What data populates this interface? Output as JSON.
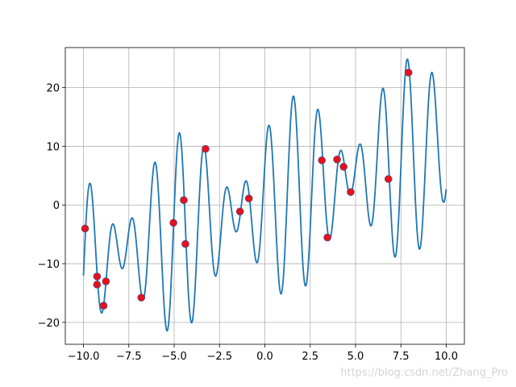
{
  "chart_data": {
    "type": "line",
    "xlim": [
      -11,
      11
    ],
    "ylim": [
      -23.73,
      26.82
    ],
    "xticks": [
      {
        "value": -10,
        "label": "−10.0"
      },
      {
        "value": -7.5,
        "label": "−7.5"
      },
      {
        "value": -5,
        "label": "−5.0"
      },
      {
        "value": -2.5,
        "label": "−2.5"
      },
      {
        "value": 0,
        "label": "0.0"
      },
      2.5,
      {
        "value": 5,
        "label": "5.0"
      },
      7.5,
      {
        "value": 10,
        "label": "10.0"
      }
    ],
    "yticks": [
      {
        "value": -20,
        "label": "−20"
      },
      {
        "value": -10,
        "label": "−10"
      },
      0,
      10,
      20
    ],
    "grid": true,
    "watermark": "https://blog.csdn.net/Zhang_Pro",
    "series": [
      {
        "type": "line",
        "color": "#1f77b4",
        "x": [
          -10,
          -9.9,
          -9.8,
          -9.7,
          -9.6,
          -9.5,
          -9.4,
          -9.3,
          -9.2,
          -9.1,
          -9,
          -8.9,
          -8.8,
          -8.7,
          -8.6,
          -8.5,
          -8.4,
          -8.3,
          -8.2,
          -8.1,
          -8,
          -7.9,
          -7.8,
          -7.7,
          -7.6,
          -7.5,
          -7.4,
          -7.3,
          -7.2,
          -7.1,
          -7,
          -6.9,
          -6.8,
          -6.7,
          -6.6,
          -6.5,
          -6.4,
          -6.3,
          -6.2,
          -6.1,
          -6,
          -5.9,
          -5.8,
          -5.7,
          -5.6,
          -5.5,
          -5.4,
          -5.3,
          -5.2,
          -5.1,
          -5,
          -4.9,
          -4.8,
          -4.7,
          -4.6,
          -4.5,
          -4.4,
          -4.3,
          -4.2,
          -4.1,
          -4,
          -3.9,
          -3.8,
          -3.7,
          -3.6,
          -3.5,
          -3.4,
          -3.3,
          -3.2,
          -3.1,
          -3,
          -2.9,
          -2.8,
          -2.7,
          -2.6,
          -2.5,
          -2.4,
          -2.3,
          -2.2,
          -2.1,
          -2,
          -1.9,
          -1.8,
          -1.7,
          -1.6,
          -1.5,
          -1.4,
          -1.3,
          -1.2,
          -1.1,
          -1,
          -0.9,
          -0.8,
          -0.7,
          -0.6,
          -0.5,
          -0.4,
          -0.3,
          -0.2,
          -0.1,
          0,
          0.1,
          0.2,
          0.3,
          0.4,
          0.5,
          0.6,
          0.7,
          0.8,
          0.9,
          1,
          1.1,
          1.2,
          1.3,
          1.4,
          1.5,
          1.6,
          1.7,
          1.8,
          1.9,
          2,
          2.1,
          2.2,
          2.3,
          2.4,
          2.5,
          2.6,
          2.7,
          2.8,
          2.9,
          3,
          3.1,
          3.2,
          3.3,
          3.4,
          3.5,
          3.6,
          3.7,
          3.8,
          3.9,
          4,
          4.1,
          4.2,
          4.3,
          4.4,
          4.5,
          4.6,
          4.7,
          4.8,
          4.9,
          5,
          5.1,
          5.2,
          5.3,
          5.4,
          5.5,
          5.6,
          5.7,
          5.8,
          5.9,
          6,
          6.1,
          6.2,
          6.3,
          6.4,
          6.5,
          6.6,
          6.7,
          6.8,
          6.9,
          7,
          7.1,
          7.2,
          7.3,
          7.4,
          7.5,
          7.6,
          7.7,
          7.8,
          7.9,
          8,
          8.1,
          8.2,
          8.3,
          8.4,
          8.5,
          8.6,
          8.7,
          8.8,
          8.9,
          9,
          9.1,
          9.2,
          9.3,
          9.4,
          9.5,
          9.6,
          9.7,
          9.8,
          9.9,
          10
        ],
        "values": [
          -12.04,
          -5.26,
          0.23,
          3.28,
          3.43,
          0.86,
          -3.67,
          -9.0,
          -13.85,
          -17.21,
          -18.41,
          -17.4,
          -14.58,
          -10.84,
          -7.2,
          -4.48,
          -3.26,
          -3.65,
          -5.31,
          -7.57,
          -9.61,
          -10.76,
          -10.6,
          -9.16,
          -6.87,
          -4.44,
          -2.68,
          -2.21,
          -3.33,
          -5.95,
          -9.46,
          -12.94,
          -15.42,
          -16.09,
          -14.51,
          -10.81,
          -5.66,
          -0.16,
          4.46,
          7.03,
          6.85,
          3.77,
          -1.65,
          -8.31,
          -14.74,
          -19.49,
          -21.43,
          -20.02,
          -15.42,
          -8.55,
          -0.82,
          6.13,
          10.83,
          12.27,
          10.17,
          5.0,
          -2.11,
          -9.57,
          -15.82,
          -19.46,
          -19.83,
          -16.92,
          -11.41,
          -4.58,
          2.09,
          7.22,
          9.8,
          9.46,
          6.49,
          1.74,
          -3.6,
          -8.27,
          -11.29,
          -12.09,
          -10.73,
          -7.71,
          -3.93,
          -0.37,
          2.12,
          3.06,
          2.42,
          0.61,
          -1.66,
          -3.6,
          -4.54,
          -4.16,
          -2.54,
          -0.17,
          2.21,
          3.8,
          4.01,
          2.6,
          -0.22,
          -3.79,
          -7.17,
          -9.4,
          -9.7,
          -7.74,
          -3.74,
          1.55,
          7.0,
          11.34,
          13.49,
          12.81,
          9.29,
          3.57,
          -3.15,
          -9.4,
          -13.76,
          -15.15,
          -13.16,
          -8.11,
          -0.98,
          6.73,
          13.4,
          17.6,
          18.45,
          15.77,
          10.18,
          2.91,
          -4.46,
          -10.33,
          -13.48,
          -13.28,
          -9.86,
          -4.04,
          2.88,
          9.38,
          14.12,
          16.23,
          15.41,
          12.07,
          7.13,
          1.82,
          -2.63,
          -5.3,
          -5.73,
          -4.03,
          -0.81,
          2.99,
          6.43,
          8.68,
          9.32,
          8.46,
          6.51,
          4.25,
          2.44,
          1.71,
          2.32,
          4.11,
          6.53,
          8.83,
          10.23,
          10.17,
          8.5,
          5.49,
          1.88,
          -1.38,
          -3.32,
          -3.24,
          -0.91,
          3.37,
          8.78,
          14.12,
          18.16,
          19.87,
          18.69,
          14.74,
          8.76,
          2.01,
          -4.02,
          -7.94,
          -8.77,
          -6.25,
          -0.75,
          6.6,
          14.26,
          20.6,
          24.28,
          24.52,
          21.29,
          15.32,
          7.92,
          0.69,
          -4.79,
          -7.4,
          -6.63,
          -2.74,
          3.38,
          10.3,
          16.61,
          20.96,
          22.59,
          21.29,
          17.6,
          12.51,
          7.27,
          3.06,
          0.75,
          0.71,
          2.71
        ]
      },
      {
        "type": "scatter",
        "color": "#e8101c",
        "x": [
          -9.91,
          -9.25,
          -9.25,
          -8.76,
          -8.89,
          -6.81,
          -5.04,
          -4.47,
          -4.38,
          -3.27,
          -1.37,
          -0.88,
          3.14,
          3.45,
          3.98,
          4.34,
          4.73,
          6.81,
          7.92
        ],
        "values": [
          -4.01,
          -12.18,
          -13.56,
          -13.01,
          -17.16,
          -15.78,
          -3.04,
          0.83,
          -6.64,
          9.55,
          -1.11,
          1.11,
          7.61,
          -5.54,
          7.75,
          6.51,
          2.21,
          4.43,
          22.56
        ]
      }
    ]
  }
}
